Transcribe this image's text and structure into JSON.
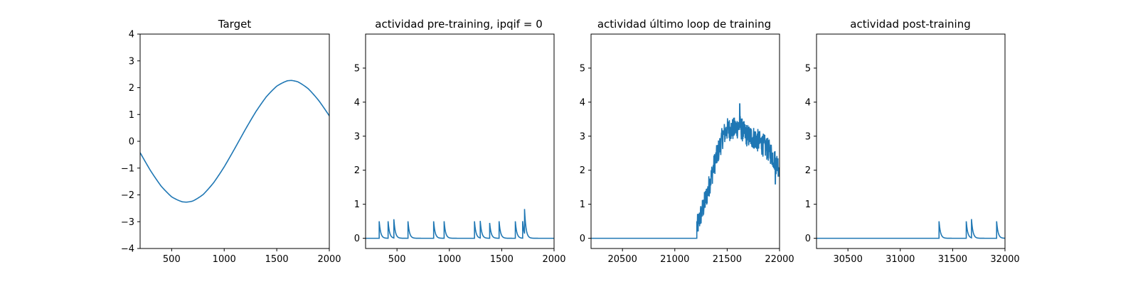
{
  "chart_data": [
    {
      "type": "line",
      "title": "Target",
      "xlabel": "",
      "ylabel": "",
      "xlim": [
        200,
        2000
      ],
      "ylim": [
        -4,
        4
      ],
      "xticks": [
        500,
        1000,
        1500,
        2000
      ],
      "yticks": [
        -4,
        -3,
        -2,
        -1,
        0,
        1,
        2,
        3,
        4
      ],
      "ytick_labels": [
        "−4",
        "−3",
        "−2",
        "−1",
        "0",
        "1",
        "2",
        "3",
        "4"
      ],
      "color": "#1f77b4",
      "series": [
        {
          "x": [
            200,
            300,
            400,
            500,
            600,
            640,
            700,
            800,
            900,
            1000,
            1100,
            1200,
            1300,
            1400,
            1500,
            1600,
            1640,
            1700,
            1800,
            1900,
            2000
          ],
          "values": [
            -0.42,
            -1.11,
            -1.69,
            -2.09,
            -2.26,
            -2.27,
            -2.23,
            -1.98,
            -1.53,
            -0.94,
            -0.26,
            0.44,
            1.1,
            1.66,
            2.06,
            2.26,
            2.27,
            2.21,
            1.93,
            1.48,
            0.93
          ]
        }
      ]
    },
    {
      "type": "line",
      "title": "actividad pre-training, ipqif = 0",
      "xlabel": "",
      "ylabel": "",
      "xlim": [
        200,
        2000
      ],
      "ylim": [
        -0.3,
        6.0
      ],
      "xticks": [
        500,
        1000,
        1500,
        2000
      ],
      "yticks": [
        0,
        1,
        2,
        3,
        4,
        5
      ],
      "ytick_labels": [
        "0",
        "1",
        "2",
        "3",
        "4",
        "5"
      ],
      "color": "#1f77b4",
      "baseline": 0,
      "spikes": [
        {
          "t": 330,
          "h": 0.5
        },
        {
          "t": 415,
          "h": 0.5
        },
        {
          "t": 470,
          "h": 0.55
        },
        {
          "t": 605,
          "h": 0.5
        },
        {
          "t": 850,
          "h": 0.5
        },
        {
          "t": 950,
          "h": 0.5
        },
        {
          "t": 1240,
          "h": 0.5
        },
        {
          "t": 1295,
          "h": 0.5
        },
        {
          "t": 1385,
          "h": 0.45
        },
        {
          "t": 1475,
          "h": 0.5
        },
        {
          "t": 1630,
          "h": 0.5
        },
        {
          "t": 1700,
          "h": 0.5
        },
        {
          "t": 1718,
          "h": 0.72
        }
      ]
    },
    {
      "type": "line",
      "title": "actividad último loop de training",
      "xlabel": "",
      "ylabel": "",
      "xlim": [
        20200,
        22000
      ],
      "ylim": [
        -0.3,
        6.0
      ],
      "xticks": [
        20500,
        21000,
        21500,
        22000
      ],
      "yticks": [
        0,
        1,
        2,
        3,
        4,
        5
      ],
      "ytick_labels": [
        "0",
        "1",
        "2",
        "3",
        "4",
        "5"
      ],
      "color": "#1f77b4",
      "baseline": 0,
      "onset": 21210,
      "envelope": {
        "x": [
          21210,
          21230,
          21260,
          21300,
          21340,
          21380,
          21420,
          21460,
          21500,
          21560,
          21620,
          21660,
          21700,
          21760,
          21800,
          21860,
          21920,
          21960,
          22000
        ],
        "values": [
          0.3,
          0.5,
          0.8,
          1.2,
          1.7,
          2.2,
          2.6,
          3.0,
          3.2,
          3.2,
          3.3,
          3.1,
          3.0,
          2.95,
          2.85,
          2.7,
          2.5,
          2.25,
          2.1
        ],
        "noise_amplitude": 0.35,
        "peak": {
          "x": 21620,
          "y": 3.95
        },
        "min_late": {
          "x": 21960,
          "y": 1.6
        }
      }
    },
    {
      "type": "line",
      "title": "actividad post-training",
      "xlabel": "",
      "ylabel": "",
      "xlim": [
        30200,
        32000
      ],
      "ylim": [
        -0.3,
        6.0
      ],
      "xticks": [
        30500,
        31000,
        31500,
        32000
      ],
      "yticks": [
        0,
        1,
        2,
        3,
        4,
        5
      ],
      "ytick_labels": [
        "0",
        "1",
        "2",
        "3",
        "4",
        "5"
      ],
      "color": "#1f77b4",
      "baseline": 0,
      "spikes": [
        {
          "t": 31370,
          "h": 0.5
        },
        {
          "t": 31630,
          "h": 0.5
        },
        {
          "t": 31680,
          "h": 0.55
        },
        {
          "t": 31920,
          "h": 0.5
        }
      ]
    }
  ]
}
